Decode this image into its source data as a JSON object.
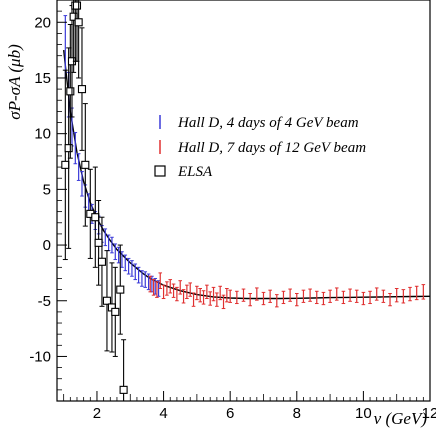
{
  "chart_data": {
    "type": "scatter",
    "xlabel": "ν (GeV)",
    "ylabel": "σP-σA (μb)",
    "xlim": [
      0.8,
      12.0
    ],
    "ylim": [
      -14,
      22
    ],
    "x_ticks": [
      2,
      4,
      6,
      8,
      10,
      12
    ],
    "y_ticks": [
      -10,
      -5,
      0,
      5,
      10,
      15,
      20
    ],
    "y_tick_labels": [
      "-10",
      "-5",
      "0",
      "5",
      "10",
      "15",
      "20"
    ],
    "grid": false,
    "legend_position": "upper-right",
    "model_curve": {
      "x": [
        1.0,
        1.2,
        1.4,
        1.6,
        1.8,
        2.0,
        2.2,
        2.4,
        2.6,
        2.8,
        3.0,
        3.2,
        3.4,
        3.6,
        3.8,
        4.0,
        4.5,
        5.0,
        5.5,
        6.0,
        6.5,
        7.0,
        7.5,
        8.0,
        8.5,
        9.0,
        9.5,
        10.0,
        10.5,
        11.0,
        11.5,
        12.0
      ],
      "y": [
        17.5,
        12.0,
        8.3,
        5.7,
        3.8,
        2.4,
        1.3,
        0.4,
        -0.4,
        -1.0,
        -1.6,
        -2.1,
        -2.6,
        -3.0,
        -3.3,
        -3.6,
        -4.1,
        -4.45,
        -4.65,
        -4.75,
        -4.8,
        -4.8,
        -4.8,
        -4.78,
        -4.75,
        -4.72,
        -4.7,
        -4.68,
        -4.66,
        -4.64,
        -4.62,
        -4.6
      ]
    },
    "series": [
      {
        "name": "Hall D, 4 days of 4 GeV beam",
        "color": "#3a3ad8",
        "marker": "errorbar",
        "x": [
          1.05,
          1.15,
          1.25,
          1.35,
          1.45,
          1.55,
          1.65,
          1.75,
          1.85,
          1.95,
          2.05,
          2.15,
          2.25,
          2.35,
          2.45,
          2.55,
          2.65,
          2.75,
          2.85,
          2.95,
          3.05,
          3.15,
          3.25,
          3.35,
          3.45,
          3.55,
          3.65,
          3.75,
          3.85
        ],
        "y": [
          17.8,
          13.5,
          10.6,
          8.7,
          7.0,
          5.5,
          4.4,
          3.7,
          2.8,
          2.2,
          1.8,
          1.0,
          0.7,
          0.2,
          0.0,
          -0.6,
          -0.9,
          -1.3,
          -1.6,
          -1.9,
          -2.1,
          -2.4,
          -2.7,
          -3.0,
          -3.1,
          -3.3,
          -3.5,
          -3.7,
          -3.9
        ],
        "err": [
          2.8,
          2.0,
          1.7,
          1.4,
          1.2,
          1.1,
          1.0,
          0.9,
          0.85,
          0.8,
          0.8,
          0.75,
          0.75,
          0.7,
          0.7,
          0.7,
          0.7,
          0.7,
          0.7,
          0.7,
          0.7,
          0.7,
          0.7,
          0.7,
          0.7,
          0.7,
          0.7,
          0.7,
          0.7
        ]
      },
      {
        "name": "Hall D, 7 days of 12 GeV beam",
        "color": "#e03030",
        "marker": "errorbar",
        "x": [
          3.6,
          3.7,
          3.8,
          3.9,
          4.0,
          4.1,
          4.2,
          4.3,
          4.4,
          4.5,
          4.6,
          4.7,
          4.8,
          4.9,
          5.0,
          5.1,
          5.2,
          5.3,
          5.4,
          5.5,
          5.6,
          5.7,
          5.8,
          5.9,
          6.0,
          6.2,
          6.4,
          6.6,
          6.8,
          7.0,
          7.2,
          7.4,
          7.6,
          7.8,
          8.0,
          8.2,
          8.4,
          8.6,
          8.8,
          9.0,
          9.2,
          9.4,
          9.6,
          9.8,
          10.0,
          10.2,
          10.4,
          10.6,
          10.8,
          11.0,
          11.2,
          11.4,
          11.6,
          11.8
        ],
        "y": [
          -3.5,
          -3.8,
          -4.0,
          -3.2,
          -4.2,
          -3.9,
          -3.7,
          -4.1,
          -4.4,
          -3.8,
          -4.6,
          -4.2,
          -4.0,
          -4.9,
          -4.3,
          -4.5,
          -4.7,
          -4.2,
          -4.8,
          -4.4,
          -4.9,
          -4.3,
          -5.1,
          -4.5,
          -4.6,
          -4.7,
          -4.5,
          -4.9,
          -4.4,
          -4.8,
          -4.6,
          -5.0,
          -4.7,
          -4.5,
          -4.9,
          -4.6,
          -4.5,
          -4.7,
          -4.8,
          -4.6,
          -4.4,
          -4.7,
          -4.5,
          -4.6,
          -4.8,
          -4.7,
          -4.4,
          -4.6,
          -4.9,
          -4.5,
          -4.6,
          -4.4,
          -4.3,
          -4.2
        ],
        "err": [
          0.7,
          0.7,
          0.7,
          0.7,
          0.6,
          0.6,
          0.6,
          0.6,
          0.6,
          0.6,
          0.6,
          0.6,
          0.6,
          0.6,
          0.6,
          0.6,
          0.6,
          0.6,
          0.6,
          0.6,
          0.6,
          0.6,
          0.6,
          0.6,
          0.55,
          0.55,
          0.55,
          0.55,
          0.55,
          0.55,
          0.55,
          0.55,
          0.55,
          0.55,
          0.55,
          0.55,
          0.55,
          0.55,
          0.55,
          0.55,
          0.55,
          0.55,
          0.55,
          0.55,
          0.55,
          0.55,
          0.55,
          0.55,
          0.55,
          0.6,
          0.6,
          0.6,
          0.6,
          0.65
        ]
      },
      {
        "name": "ELSA",
        "color": "#000000",
        "marker": "open-square",
        "x": [
          1.05,
          1.15,
          1.2,
          1.25,
          1.3,
          1.35,
          1.4,
          1.45,
          1.55,
          1.65,
          1.8,
          1.95,
          2.05,
          2.15,
          2.3,
          2.45,
          2.55,
          2.7,
          2.8
        ],
        "y": [
          7.2,
          8.7,
          13.8,
          16.5,
          20.5,
          21.5,
          21.5,
          20.0,
          14.0,
          7.2,
          2.8,
          2.5,
          0.2,
          -1.5,
          -5.0,
          -5.6,
          -6.0,
          -4.0,
          -13.0
        ],
        "err": [
          8.5,
          9.0,
          6.0,
          5.0,
          5.0,
          5.0,
          5.0,
          5.0,
          5.5,
          5.5,
          4.0,
          4.5,
          3.8,
          4.0,
          4.5,
          4.0,
          4.0,
          4.0,
          4.5
        ]
      }
    ]
  }
}
